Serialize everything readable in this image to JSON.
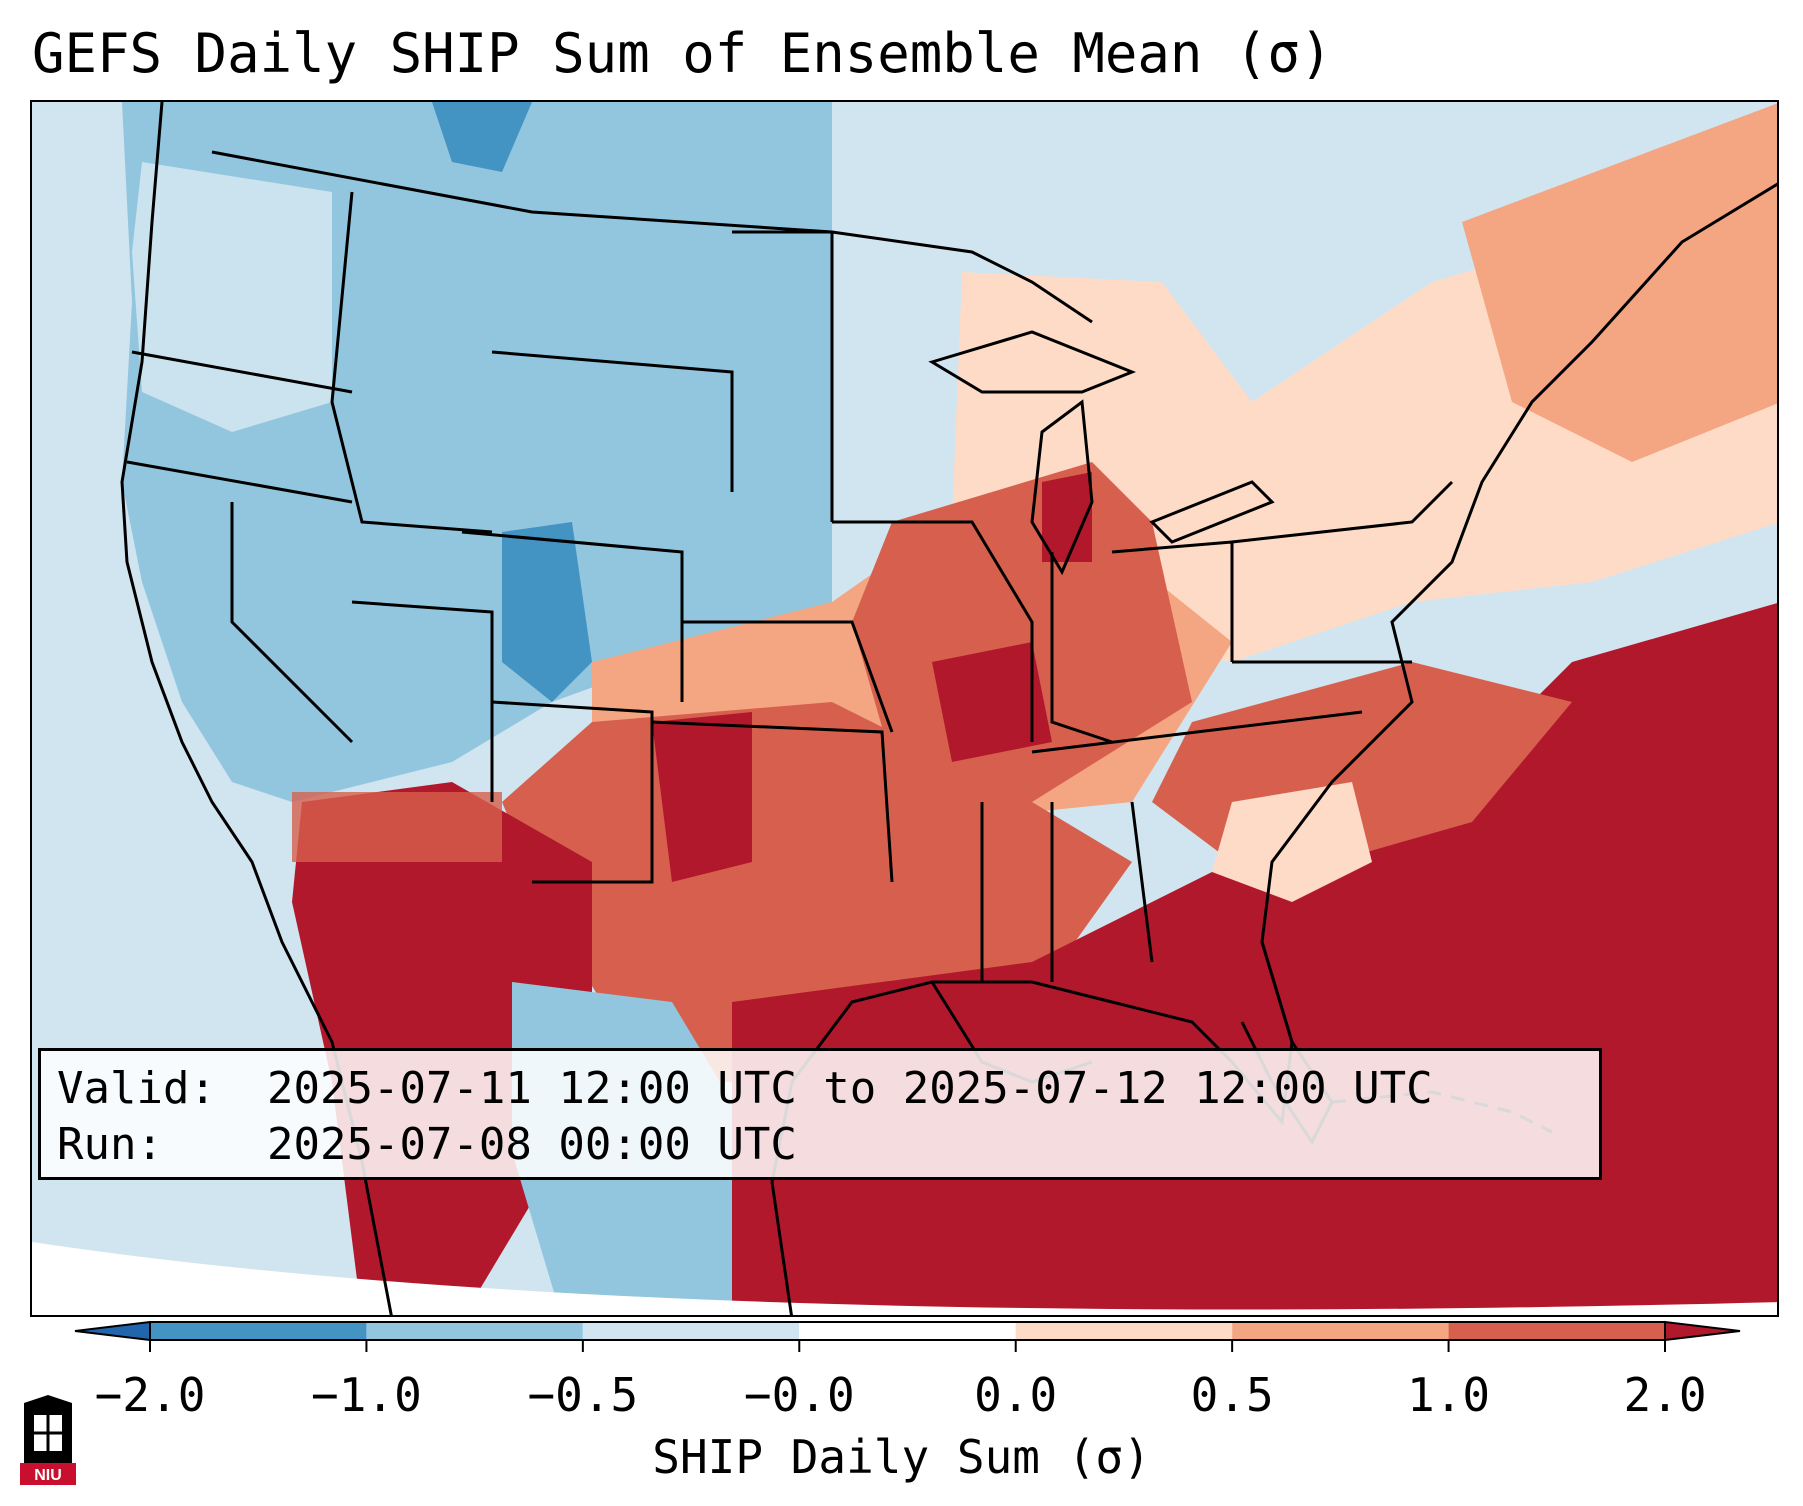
{
  "title": "GEFS Daily SHIP Sum of Ensemble Mean (σ)",
  "info": {
    "valid_label": "Valid:",
    "valid_value": "2025-07-11 12:00 UTC to 2025-07-12 12:00 UTC",
    "run_label": "Run:",
    "run_value": "2025-07-08 00:00 UTC"
  },
  "colorbar": {
    "label": "SHIP Daily Sum (σ)",
    "ticks": [
      "−2.0",
      "−1.0",
      "−0.5",
      "−0.0",
      "0.0",
      "0.5",
      "1.0",
      "2.0"
    ],
    "bins": [
      {
        "color": "#4393c3"
      },
      {
        "color": "#92c5de"
      },
      {
        "color": "#d1e5f0"
      },
      {
        "color": "#ffffff"
      },
      {
        "color": "#fddbc7"
      },
      {
        "color": "#f4a582"
      },
      {
        "color": "#d6604d"
      }
    ],
    "under_color": "#2166ac",
    "over_color": "#b2182b"
  },
  "map": {
    "projection_note": "Continental United States",
    "land_sea_background": "#d1e5f0",
    "regions": [
      {
        "name": "northwest",
        "category": "-0.5 to -0.0"
      },
      {
        "name": "northern-rockies",
        "category": "-1.0 to -0.5"
      },
      {
        "name": "northern-plains",
        "category": "-1.0 to -0.5"
      },
      {
        "name": "great-lakes",
        "category": "0.0 to 0.5"
      },
      {
        "name": "midwest",
        "category": "1.0 to 2.0"
      },
      {
        "name": "southern-plains",
        "category": "0.5 to 1.0"
      },
      {
        "name": "southwest",
        "category": "> 2.0"
      },
      {
        "name": "southeast",
        "category": "> 2.0"
      },
      {
        "name": "gulf-of-mexico",
        "category": "> 2.0"
      },
      {
        "name": "northeast",
        "category": "0.0 to 0.5"
      }
    ]
  },
  "logo": {
    "text": "NIU"
  }
}
